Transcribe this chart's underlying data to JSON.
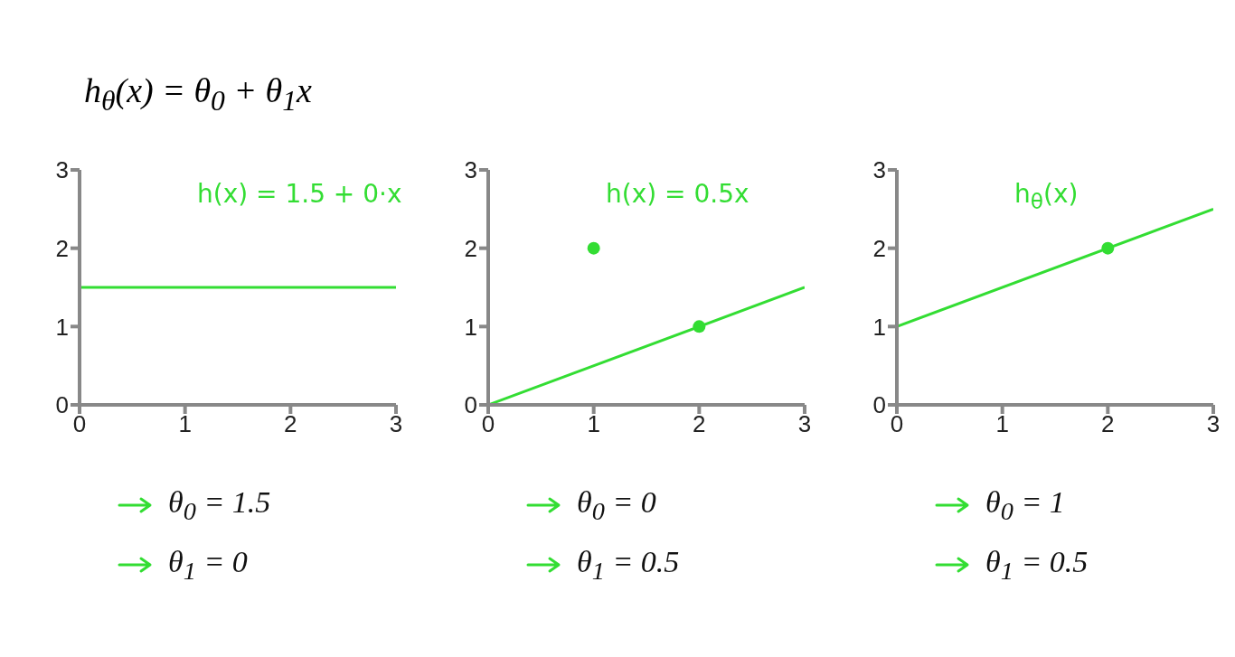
{
  "chart_data": [
    {
      "type": "line",
      "title": "h$_{θ}$(x) = θ$_{0}$ + θ$_{1}$x",
      "xlim": [
        0,
        3
      ],
      "ylim": [
        0,
        3
      ],
      "xticks": [
        0,
        1,
        2,
        3
      ],
      "yticks": [
        0,
        1,
        2,
        3
      ],
      "grid": false,
      "series": [
        {
          "type": "line",
          "color": "#33dd33",
          "x": [
            0,
            3
          ],
          "values": [
            1.5,
            1.5
          ]
        }
      ],
      "annotations": [
        "h(x) = 1.5 + 0·x",
        "θ$_{0}$ = 1.5",
        "θ$_{1}$ = 0"
      ]
    },
    {
      "type": "line",
      "xlim": [
        0,
        3
      ],
      "ylim": [
        0,
        3
      ],
      "xticks": [
        0,
        1,
        2,
        3
      ],
      "yticks": [
        0,
        1,
        2,
        3
      ],
      "grid": false,
      "series": [
        {
          "type": "line",
          "color": "#33dd33",
          "x": [
            0,
            3
          ],
          "values": [
            0,
            1.5
          ]
        },
        {
          "type": "scatter",
          "color": "#33dd33",
          "x": [
            1,
            2
          ],
          "values": [
            2,
            1
          ]
        }
      ],
      "annotations": [
        "h(x) = 0.5x",
        "θ$_{0}$ = 0",
        "θ$_{1}$ = 0.5"
      ]
    },
    {
      "type": "line",
      "xlim": [
        0,
        3
      ],
      "ylim": [
        0,
        3
      ],
      "xticks": [
        0,
        1,
        2,
        3
      ],
      "yticks": [
        0,
        1,
        2,
        3
      ],
      "grid": false,
      "series": [
        {
          "type": "line",
          "color": "#33dd33",
          "x": [
            0,
            3
          ],
          "values": [
            1,
            2.5
          ]
        },
        {
          "type": "scatter",
          "color": "#33dd33",
          "x": [
            2
          ],
          "values": [
            2
          ]
        }
      ],
      "annotations": [
        "h$_{θ}$(x)",
        "θ$_{0}$ = 1",
        "θ$_{1}$ = 0.5"
      ]
    }
  ]
}
